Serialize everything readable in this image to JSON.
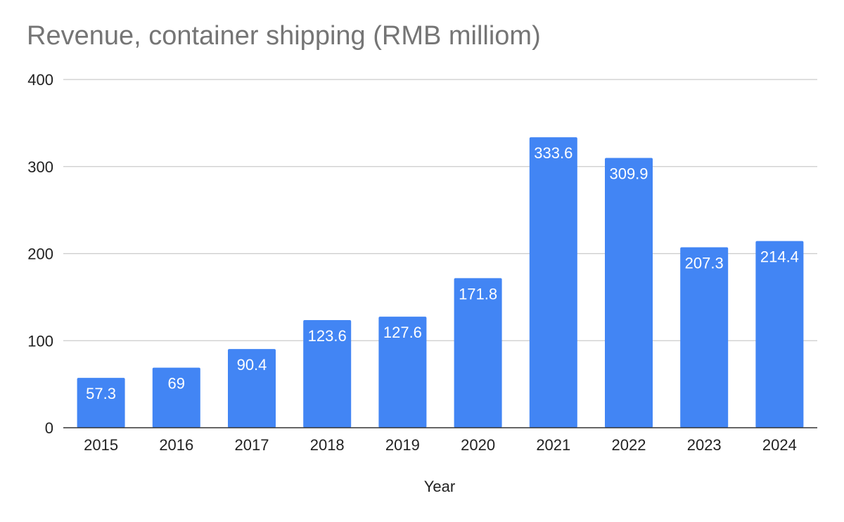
{
  "chart_data": {
    "type": "bar",
    "title": "Revenue, container shipping (RMB milliom)",
    "xlabel": "Year",
    "ylabel": "",
    "categories": [
      "2015",
      "2016",
      "2017",
      "2018",
      "2019",
      "2020",
      "2021",
      "2022",
      "2023",
      "2024"
    ],
    "values": [
      57.3,
      69,
      90.4,
      123.6,
      127.6,
      171.8,
      333.6,
      309.9,
      207.3,
      214.4
    ],
    "data_labels": [
      "57.3",
      "69",
      "90.4",
      "123.6",
      "127.6",
      "171.8",
      "333.6",
      "309.9",
      "207.3",
      "214.4"
    ],
    "ylim": [
      0,
      400
    ],
    "yticks": [
      0,
      100,
      200,
      300,
      400
    ],
    "ytick_labels": [
      "0",
      "100",
      "200",
      "300",
      "400"
    ],
    "grid": true,
    "legend": "none",
    "colors": {
      "bar": "#4285f4",
      "grid": "#cccccc",
      "axis": "#333333",
      "title": "#757575"
    }
  }
}
